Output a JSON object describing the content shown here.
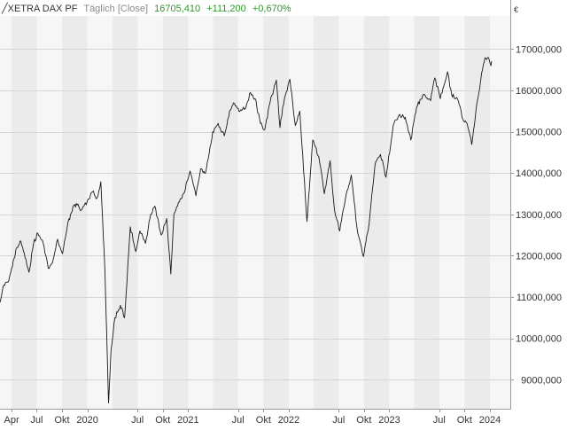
{
  "header": {
    "symbol": "╱XETRA DAX PF",
    "period": "Täglich [Close]",
    "last": "16705,410",
    "change": "+111,200",
    "change_pct": "+0,670%"
  },
  "currency_label": "€",
  "colors": {
    "background": "#ffffff",
    "band_dark": "#ebebeb",
    "band_light": "#f6f6f6",
    "grid": "#d4d4d4",
    "line": "#1a1a1a",
    "axis_text": "#333333",
    "header_positive": "#2a9a2a",
    "header_muted": "#8a8a8a"
  },
  "chart_data": {
    "type": "line",
    "title": "XETRA DAX PF",
    "ylim": [
      8300000,
      17800000
    ],
    "y_ticks": [
      9000000,
      10000000,
      11000000,
      12000000,
      13000000,
      14000000,
      15000000,
      16000000,
      17000000
    ],
    "y_tick_labels": [
      "9000,000",
      "10000,000",
      "11000,000",
      "12000,000",
      "13000,000",
      "14000,000",
      "15000,000",
      "16000,000",
      "17000,000"
    ],
    "x_start": "2019-02-18",
    "x_end": "2024-03-15",
    "x_ticks": [
      {
        "date": "2019-04-01",
        "label": "Apr"
      },
      {
        "date": "2019-07-01",
        "label": "Jul"
      },
      {
        "date": "2019-10-01",
        "label": "Okt"
      },
      {
        "date": "2020-01-01",
        "label": "2020"
      },
      {
        "date": "2020-07-01",
        "label": "Jul"
      },
      {
        "date": "2020-10-01",
        "label": "Okt"
      },
      {
        "date": "2021-01-01",
        "label": "2021"
      },
      {
        "date": "2021-07-01",
        "label": "Jul"
      },
      {
        "date": "2021-10-01",
        "label": "Okt"
      },
      {
        "date": "2022-01-01",
        "label": "2022"
      },
      {
        "date": "2022-07-01",
        "label": "Jul"
      },
      {
        "date": "2022-10-01",
        "label": "Okt"
      },
      {
        "date": "2023-01-01",
        "label": "2023"
      },
      {
        "date": "2023-07-01",
        "label": "Jul"
      },
      {
        "date": "2023-10-01",
        "label": "Okt"
      },
      {
        "date": "2024-01-01",
        "label": "2024"
      }
    ],
    "grid": true,
    "series": [
      {
        "name": "XETRA DAX PF",
        "points": [
          [
            "2019-02-18",
            10870000
          ],
          [
            "2019-03-01",
            11250000
          ],
          [
            "2019-03-22",
            11400000
          ],
          [
            "2019-04-01",
            11700000
          ],
          [
            "2019-04-20",
            12200000
          ],
          [
            "2019-05-05",
            12350000
          ],
          [
            "2019-05-20",
            11950000
          ],
          [
            "2019-06-03",
            11600000
          ],
          [
            "2019-06-20",
            12300000
          ],
          [
            "2019-07-05",
            12550000
          ],
          [
            "2019-07-25",
            12300000
          ],
          [
            "2019-08-12",
            11700000
          ],
          [
            "2019-08-30",
            11900000
          ],
          [
            "2019-09-15",
            12400000
          ],
          [
            "2019-10-03",
            12050000
          ],
          [
            "2019-10-20",
            12700000
          ],
          [
            "2019-11-10",
            13200000
          ],
          [
            "2019-11-28",
            13250000
          ],
          [
            "2019-12-10",
            13100000
          ],
          [
            "2019-12-31",
            13300000
          ],
          [
            "2020-01-20",
            13550000
          ],
          [
            "2020-02-05",
            13400000
          ],
          [
            "2020-02-19",
            13790000
          ],
          [
            "2020-03-05",
            11600000
          ],
          [
            "2020-03-18",
            8440000
          ],
          [
            "2020-03-27",
            9700000
          ],
          [
            "2020-04-10",
            10500000
          ],
          [
            "2020-04-30",
            10800000
          ],
          [
            "2020-05-15",
            10500000
          ],
          [
            "2020-06-05",
            12700000
          ],
          [
            "2020-06-25",
            12100000
          ],
          [
            "2020-07-10",
            12600000
          ],
          [
            "2020-07-30",
            12300000
          ],
          [
            "2020-08-15",
            12900000
          ],
          [
            "2020-09-02",
            13200000
          ],
          [
            "2020-09-25",
            12500000
          ],
          [
            "2020-10-15",
            12900000
          ],
          [
            "2020-10-30",
            11560000
          ],
          [
            "2020-11-10",
            13000000
          ],
          [
            "2020-11-30",
            13300000
          ],
          [
            "2020-12-15",
            13500000
          ],
          [
            "2021-01-08",
            14050000
          ],
          [
            "2021-01-29",
            13450000
          ],
          [
            "2021-02-15",
            14100000
          ],
          [
            "2021-03-05",
            14000000
          ],
          [
            "2021-03-31",
            15000000
          ],
          [
            "2021-04-20",
            15200000
          ],
          [
            "2021-05-12",
            14900000
          ],
          [
            "2021-05-31",
            15500000
          ],
          [
            "2021-06-15",
            15700000
          ],
          [
            "2021-07-08",
            15500000
          ],
          [
            "2021-07-30",
            15600000
          ],
          [
            "2021-08-15",
            15950000
          ],
          [
            "2021-09-01",
            15800000
          ],
          [
            "2021-09-20",
            15200000
          ],
          [
            "2021-10-06",
            15050000
          ],
          [
            "2021-10-25",
            15700000
          ],
          [
            "2021-11-17",
            16250000
          ],
          [
            "2021-11-30",
            15100000
          ],
          [
            "2021-12-10",
            15600000
          ],
          [
            "2022-01-05",
            16270000
          ],
          [
            "2022-01-25",
            15150000
          ],
          [
            "2022-02-10",
            15500000
          ],
          [
            "2022-02-24",
            14050000
          ],
          [
            "2022-03-08",
            12830000
          ],
          [
            "2022-03-29",
            14800000
          ],
          [
            "2022-04-20",
            14400000
          ],
          [
            "2022-05-10",
            13500000
          ],
          [
            "2022-05-31",
            14300000
          ],
          [
            "2022-06-16",
            13100000
          ],
          [
            "2022-07-05",
            12600000
          ],
          [
            "2022-07-29",
            13500000
          ],
          [
            "2022-08-16",
            13950000
          ],
          [
            "2022-09-05",
            12700000
          ],
          [
            "2022-09-29",
            11980000
          ],
          [
            "2022-10-20",
            12800000
          ],
          [
            "2022-11-10",
            14200000
          ],
          [
            "2022-11-30",
            14450000
          ],
          [
            "2022-12-20",
            13900000
          ],
          [
            "2023-01-15",
            15150000
          ],
          [
            "2023-02-05",
            15400000
          ],
          [
            "2023-02-28",
            15350000
          ],
          [
            "2023-03-20",
            14800000
          ],
          [
            "2023-04-10",
            15600000
          ],
          [
            "2023-05-05",
            15900000
          ],
          [
            "2023-05-31",
            15750000
          ],
          [
            "2023-06-15",
            16300000
          ],
          [
            "2023-07-05",
            15800000
          ],
          [
            "2023-07-31",
            16450000
          ],
          [
            "2023-08-15",
            15900000
          ],
          [
            "2023-09-05",
            15800000
          ],
          [
            "2023-09-25",
            15300000
          ],
          [
            "2023-10-10",
            15200000
          ],
          [
            "2023-10-27",
            14690000
          ],
          [
            "2023-11-15",
            15700000
          ],
          [
            "2023-12-05",
            16500000
          ],
          [
            "2023-12-14",
            16790000
          ],
          [
            "2023-12-29",
            16750000
          ],
          [
            "2024-01-05",
            16594000
          ],
          [
            "2024-01-08",
            16705000
          ]
        ]
      }
    ]
  }
}
